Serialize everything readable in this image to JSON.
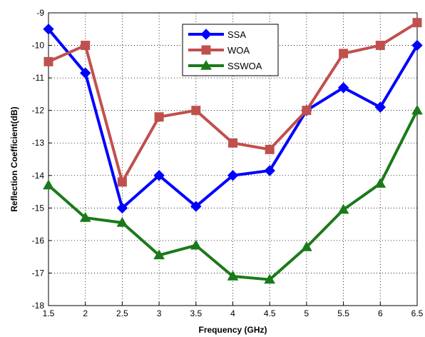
{
  "chart_data": {
    "type": "line",
    "xlabel": "Frequency (GHz)",
    "ylabel": "Reflection Coefficient(dB)",
    "x": [
      1.5,
      2,
      2.5,
      3,
      3.5,
      4,
      4.5,
      5,
      5.5,
      6,
      6.5
    ],
    "xticks": [
      "1.5",
      "2",
      "2.5",
      "3",
      "3.5",
      "4",
      "4.5",
      "5",
      "5.5",
      "6",
      "6.5"
    ],
    "yticks": [
      "-9",
      "-10",
      "-11",
      "-12",
      "-13",
      "-14",
      "-15",
      "-16",
      "-17",
      "-18"
    ],
    "xlim": [
      1.5,
      6.5
    ],
    "ylim": [
      -18,
      -9
    ],
    "grid": true,
    "legend_position": "top-center",
    "series": [
      {
        "name": "SSA",
        "color": "#0000ff",
        "marker": "diamond",
        "values": [
          -9.5,
          -10.85,
          -15.0,
          -14.0,
          -14.95,
          -14.0,
          -13.85,
          -12.0,
          -11.3,
          -11.9,
          -10.0
        ]
      },
      {
        "name": "WOA",
        "color": "#c0504d",
        "marker": "square",
        "values": [
          -10.5,
          -10.0,
          -14.2,
          -12.2,
          -12.0,
          -13.0,
          -13.2,
          -12.0,
          -10.25,
          -10.0,
          -9.3
        ]
      },
      {
        "name": "SSWOA",
        "color": "#1a7a1a",
        "marker": "triangle",
        "values": [
          -14.3,
          -15.3,
          -15.45,
          -16.45,
          -16.15,
          -17.1,
          -17.2,
          -16.2,
          -15.05,
          -14.25,
          -12.0
        ]
      }
    ]
  }
}
